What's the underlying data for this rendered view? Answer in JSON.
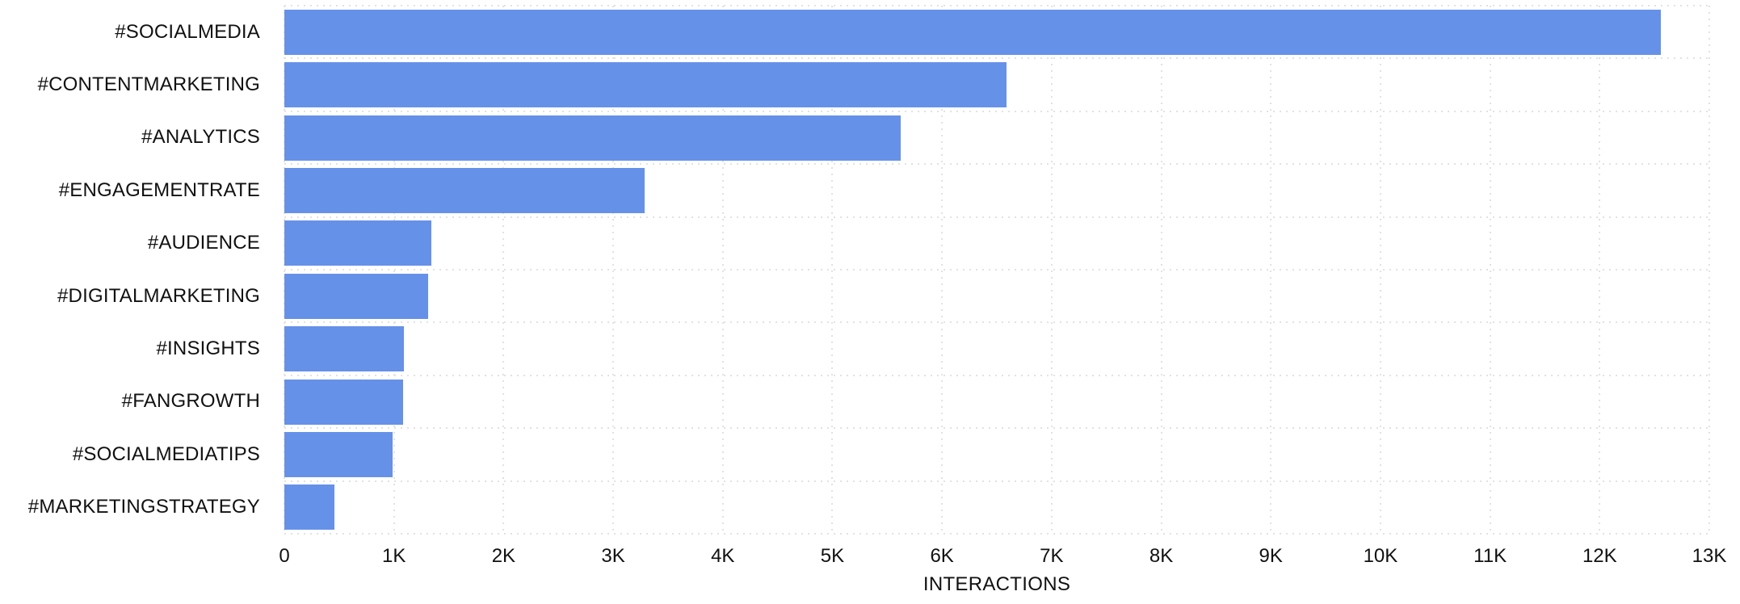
{
  "colors": {
    "bar": "#6691E9",
    "grid": "#E2E2E2",
    "text": "#111111",
    "background": "#FFFFFF"
  },
  "chart_data": {
    "type": "bar",
    "orientation": "horizontal",
    "title": "",
    "xlabel": "INTERACTIONS",
    "ylabel": "",
    "categories": [
      "#SOCIALMEDIA",
      "#CONTENTMARKETING",
      "#ANALYTICS",
      "#ENGAGEMENTRATE",
      "#AUDIENCE",
      "#DIGITALMARKETING",
      "#INSIGHTS",
      "#FANGROWTH",
      "#SOCIALMEDIATIPS",
      "#MARKETINGSTRATEGY"
    ],
    "values": [
      12560,
      6590,
      5620,
      3290,
      1340,
      1310,
      1090,
      1080,
      990,
      460
    ],
    "xlim": [
      0,
      13000
    ],
    "xticks": [
      "0",
      "1K",
      "2K",
      "3K",
      "4K",
      "5K",
      "6K",
      "7K",
      "8K",
      "9K",
      "10K",
      "11K",
      "12K",
      "13K"
    ],
    "grid": "dotted",
    "legend": false
  }
}
